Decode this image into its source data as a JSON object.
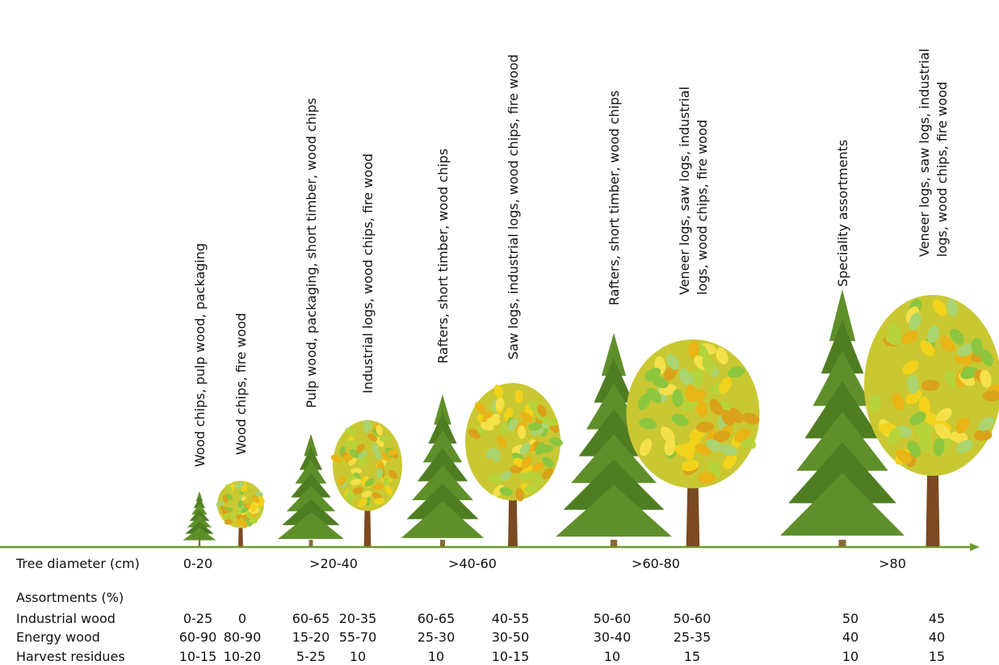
{
  "axis": {
    "label": "Tree diameter (cm)",
    "classes": [
      "0-20",
      ">20-40",
      ">40-60",
      ">60-80",
      ">80"
    ]
  },
  "table": {
    "title": "Assortments (%)",
    "rows": [
      "Industrial wood",
      "Energy wood",
      "Harvest residues"
    ]
  },
  "columns": [
    {
      "uses": [
        "Wood chips, pulp wood, packaging"
      ],
      "values": [
        "0-25",
        "60-90",
        "10-15"
      ]
    },
    {
      "uses": [
        "Wood chips, fire wood"
      ],
      "values": [
        "0",
        "80-90",
        "10-20"
      ]
    },
    {
      "uses": [
        "Pulp wood, packaging, short timber, wood chips"
      ],
      "values": [
        "60-65",
        "15-20",
        "5-25"
      ]
    },
    {
      "uses": [
        "Industrial logs, wood chips, fire wood"
      ],
      "values": [
        "20-35",
        "55-70",
        "10"
      ]
    },
    {
      "uses": [
        "Rafters, short timber, wood chips"
      ],
      "values": [
        "60-65",
        "25-30",
        "10"
      ]
    },
    {
      "uses": [
        "Saw logs, industrial logs, wood chips, fire wood"
      ],
      "values": [
        "40-55",
        "30-50",
        "10-15"
      ]
    },
    {
      "uses": [
        "Rafters, short timber, wood chips"
      ],
      "values": [
        "50-60",
        "30-40",
        "10"
      ]
    },
    {
      "uses": [
        "Veneer logs, saw logs, industrial",
        "logs, wood chips, fire wood"
      ],
      "values": [
        "50-60",
        "25-35",
        "15"
      ]
    },
    {
      "uses": [
        "Speciality assortments"
      ],
      "values": [
        "50",
        "40",
        "10"
      ]
    },
    {
      "uses": [
        "Veneer logs, saw logs, industrial",
        "logs, wood chips, fire wood"
      ],
      "values": [
        "45",
        "40",
        "15"
      ]
    }
  ]
}
